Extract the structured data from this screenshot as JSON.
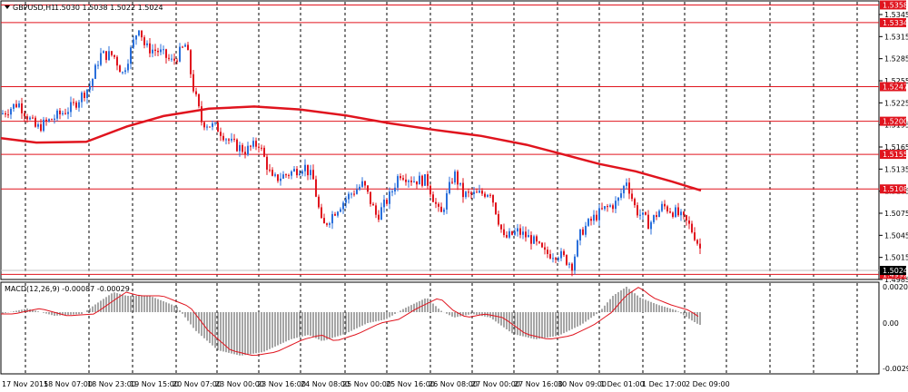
{
  "header": {
    "symbol": "GBPUSD,H1",
    "ohlc": "1.5030 1.5038 1.5022 1.5024"
  },
  "macd": {
    "label": "MACD(12,26,9) -0.00087 -0.00029",
    "ticks": [
      "0.00209",
      "0.00",
      "-0.00294"
    ],
    "values": {
      "top": 0.00209,
      "zero": 0.0,
      "bottom": -0.00294
    }
  },
  "price_axis": {
    "ticks": [
      "1.5345",
      "1.5315",
      "1.5285",
      "1.5255",
      "1.5225",
      "1.5195",
      "1.5165",
      "1.5135",
      "1.5105",
      "1.5075",
      "1.5045",
      "1.5015",
      "1.4985"
    ]
  },
  "levels": [
    {
      "value": "1.5358"
    },
    {
      "value": "1.5334"
    },
    {
      "value": "1.5247"
    },
    {
      "value": "1.5200"
    },
    {
      "value": "1.5155"
    },
    {
      "value": "1.5108"
    },
    {
      "value": "1.4992"
    }
  ],
  "current_price": "1.5024",
  "time_axis": {
    "labels": [
      "17 Nov 2015",
      "18 Nov 07:00",
      "18 Nov 23:00",
      "19 Nov 15:00",
      "20 Nov 07:00",
      "23 Nov 00:00",
      "23 Nov 16:00",
      "24 Nov 08:00",
      "25 Nov 00:00",
      "25 Nov 16:00",
      "26 Nov 08:00",
      "27 Nov 00:00",
      "27 Nov 16:00",
      "30 Nov 09:00",
      "1 Dec 01:00",
      "1 Dec 17:00",
      "2 Dec 09:00"
    ]
  },
  "colors": {
    "bull": "#2a6fdb",
    "bear": "#e0141e",
    "level": "#e0141e",
    "ma": "#e0141e",
    "grid": "#000000",
    "histogram": "#808080",
    "signal": "#e0141e"
  },
  "ui": {
    "collapse_icon": "triangle-down-icon"
  }
}
